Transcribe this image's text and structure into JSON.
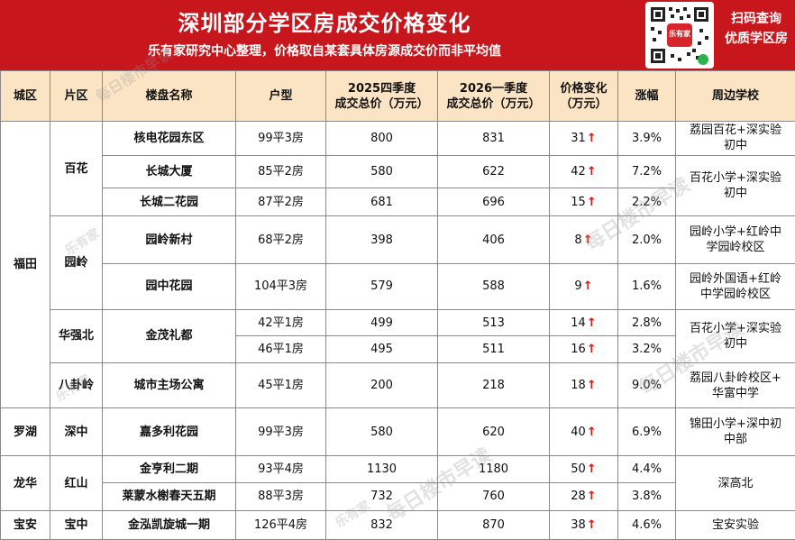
{
  "header": {
    "title": "深圳部分学区房成交价格变化",
    "subtitle": "乐有家研究中心整理，价格取自某套具体房源成交价而非平均值",
    "qr_caption_line1": "扫码查询",
    "qr_caption_line2": "优质学区房",
    "qr_logo_text": "乐有家"
  },
  "table": {
    "columns": {
      "district": "城区",
      "area": "片区",
      "estate": "楼盘名称",
      "layout": "户型",
      "q4_line1": "2025四季度",
      "q4_line2": "成交总价（万元）",
      "q1_line1": "2026一季度",
      "q1_line2": "成交总价（万元）",
      "change_line1": "价格变化",
      "change_line2": "（万元）",
      "growth": "涨幅",
      "schools": "周边学校"
    },
    "districts": {
      "futian": "福田",
      "luohu": "罗湖",
      "longhua": "龙华",
      "baoan": "宝安"
    },
    "areas": {
      "baihua": "百花",
      "yuanling": "园岭",
      "huaqiangbei": "华强北",
      "baguaLing": "八卦岭",
      "shenzhong": "深中",
      "hongshan": "红山",
      "baozhong": "宝中"
    },
    "rows": [
      {
        "estate": "核电花园东区",
        "layout": "99平3房",
        "q4": "800",
        "q1": "831",
        "change": "31",
        "growth": "3.9%"
      },
      {
        "estate": "长城大厦",
        "layout": "85平2房",
        "q4": "580",
        "q1": "622",
        "change": "42",
        "growth": "7.2%"
      },
      {
        "estate": "长城二花园",
        "layout": "87平2房",
        "q4": "681",
        "q1": "696",
        "change": "15",
        "growth": "2.2%"
      },
      {
        "estate": "园岭新村",
        "layout": "68平2房",
        "q4": "398",
        "q1": "406",
        "change": "8",
        "growth": "2.0%"
      },
      {
        "estate": "园中花园",
        "layout": "104平3房",
        "q4": "579",
        "q1": "588",
        "change": "9",
        "growth": "1.6%"
      },
      {
        "estate": "金茂礼都",
        "layout": "42平1房",
        "q4": "499",
        "q1": "513",
        "change": "14",
        "growth": "2.8%"
      },
      {
        "estate": "",
        "layout": "46平1房",
        "q4": "495",
        "q1": "511",
        "change": "16",
        "growth": "3.2%"
      },
      {
        "estate": "城市主场公寓",
        "layout": "45平1房",
        "q4": "200",
        "q1": "218",
        "change": "18",
        "growth": "9.0%"
      },
      {
        "estate": "嘉多利花园",
        "layout": "99平3房",
        "q4": "580",
        "q1": "620",
        "change": "40",
        "growth": "6.9%"
      },
      {
        "estate": "金亨利二期",
        "layout": "93平4房",
        "q4": "1130",
        "q1": "1180",
        "change": "50",
        "growth": "4.4%"
      },
      {
        "estate": "莱蒙水榭春天五期",
        "layout": "88平3房",
        "q4": "732",
        "q1": "760",
        "change": "28",
        "growth": "3.8%"
      },
      {
        "estate": "金泓凯旋城一期",
        "layout": "126平4房",
        "q4": "832",
        "q1": "870",
        "change": "38",
        "growth": "4.6%"
      }
    ],
    "schools": {
      "s1_line1": "荔园百花+深实验",
      "s1_line2": "初中",
      "s2_line1": "百花小学+深实验",
      "s2_line2": "初中",
      "s3_line1": "园岭小学+红岭中",
      "s3_line2": "学园岭校区",
      "s4_line1": "园岭外国语+红岭",
      "s4_line2": "中学园岭校区",
      "s5_line1": "百花小学+深实验",
      "s5_line2": "初中",
      "s6_line1": "荔园八卦岭校区+",
      "s6_line2": "华富中学",
      "s7_line1": "锦田小学+深中初",
      "s7_line2": "中部",
      "s8": "深高北",
      "s9": "宝安实验"
    },
    "arrow_glyph": "↑"
  },
  "watermark": {
    "text": "每日楼市早读",
    "logo": "乐有家"
  },
  "colors": {
    "banner": "#c8161d",
    "header_row": "#fbe4c4",
    "arrow": "#e0140c"
  }
}
